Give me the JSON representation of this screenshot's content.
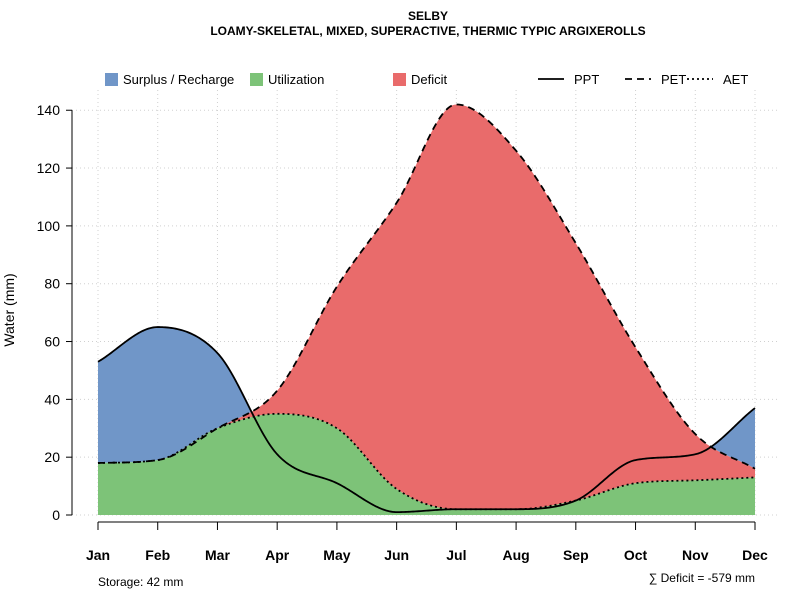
{
  "chart_data": {
    "type": "area",
    "title": "SELBY",
    "subtitle": "LOAMY-SKELETAL, MIXED, SUPERACTIVE, THERMIC TYPIC ARGIXEROLLS",
    "xlabel": "",
    "ylabel": "Water (mm)",
    "ylim": [
      0,
      147
    ],
    "yticks": [
      0,
      20,
      40,
      60,
      80,
      100,
      120,
      140
    ],
    "grid": true,
    "categories": [
      "Jan",
      "Feb",
      "Mar",
      "Apr",
      "May",
      "Jun",
      "Jul",
      "Aug",
      "Sep",
      "Oct",
      "Nov",
      "Dec"
    ],
    "series": [
      {
        "name": "PPT",
        "style": "solid",
        "values": [
          53,
          65,
          56,
          21,
          11,
          1,
          2,
          2,
          5,
          19,
          21,
          37
        ]
      },
      {
        "name": "PET",
        "style": "dashed",
        "values": [
          18,
          19,
          30,
          43,
          79,
          108,
          142,
          126,
          94,
          58,
          28,
          16
        ]
      },
      {
        "name": "AET",
        "style": "dotted",
        "values": [
          18,
          19,
          30,
          35,
          30,
          9,
          2,
          2,
          5,
          11,
          12,
          13
        ]
      }
    ],
    "legend": [
      {
        "label": "Surplus / Recharge",
        "kind": "fill",
        "color": "#7096c8"
      },
      {
        "label": "Utilization",
        "kind": "fill",
        "color": "#7dc378"
      },
      {
        "label": "Deficit",
        "kind": "fill",
        "color": "#e96b6b"
      },
      {
        "label": "PPT",
        "kind": "line",
        "style": "solid"
      },
      {
        "label": "PET",
        "kind": "line",
        "style": "dashed"
      },
      {
        "label": "AET",
        "kind": "line",
        "style": "dotted"
      }
    ],
    "colors": {
      "surplus": "#7096c8",
      "utilization": "#7dc378",
      "deficit": "#e96b6b",
      "grid": "#d0d0d0"
    },
    "annotations": {
      "storage": "Storage: 42 mm",
      "deficit": "∑ Deficit = -579 mm"
    }
  }
}
